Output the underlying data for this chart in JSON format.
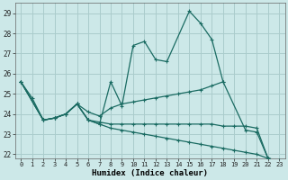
{
  "xlabel": "Humidex (Indice chaleur)",
  "bg_color": "#cce8e8",
  "grid_color": "#aacccc",
  "line_color": "#1a6b62",
  "ylim": [
    21.8,
    29.5
  ],
  "xlim": [
    -0.5,
    23.5
  ],
  "yticks": [
    22,
    23,
    24,
    25,
    26,
    27,
    28,
    29
  ],
  "xticks": [
    0,
    1,
    2,
    3,
    4,
    5,
    6,
    7,
    8,
    9,
    10,
    11,
    12,
    13,
    14,
    15,
    16,
    17,
    18,
    19,
    20,
    21,
    22,
    23
  ],
  "s1_x": [
    0,
    1,
    2,
    3,
    4,
    5,
    6,
    7,
    8,
    9,
    10,
    11,
    12,
    13,
    15,
    16,
    17,
    18,
    20,
    21,
    22,
    23
  ],
  "s1_y": [
    25.6,
    24.8,
    23.7,
    23.8,
    24.0,
    24.5,
    23.7,
    23.5,
    25.6,
    24.4,
    27.4,
    27.6,
    26.7,
    26.6,
    29.1,
    28.5,
    27.7,
    25.6,
    23.2,
    23.1,
    21.8,
    21.7
  ],
  "s2_x": [
    0,
    2,
    3,
    4,
    5,
    6,
    7,
    8,
    9,
    10,
    11,
    12,
    13,
    14,
    15,
    16,
    17,
    18
  ],
  "s2_y": [
    25.6,
    23.7,
    23.8,
    24.0,
    24.5,
    24.1,
    23.9,
    24.3,
    24.5,
    24.6,
    24.7,
    24.8,
    24.9,
    25.0,
    25.1,
    25.2,
    25.4,
    25.6
  ],
  "s3_x": [
    0,
    2,
    3,
    4,
    5,
    6,
    7,
    8,
    9,
    10,
    11,
    12,
    13,
    14,
    15,
    16,
    17,
    18,
    19,
    20,
    21,
    22,
    23
  ],
  "s3_y": [
    25.6,
    23.7,
    23.8,
    24.0,
    24.5,
    23.7,
    23.6,
    23.5,
    23.5,
    23.5,
    23.5,
    23.5,
    23.5,
    23.5,
    23.5,
    23.5,
    23.5,
    23.4,
    23.4,
    23.4,
    23.3,
    21.8,
    21.7
  ],
  "s4_x": [
    0,
    2,
    3,
    4,
    5,
    6,
    7,
    8,
    9,
    10,
    11,
    12,
    13,
    14,
    15,
    16,
    17,
    18,
    19,
    20,
    21,
    22,
    23
  ],
  "s4_y": [
    25.6,
    23.7,
    23.8,
    24.0,
    24.5,
    23.7,
    23.5,
    23.3,
    23.2,
    23.1,
    23.0,
    22.9,
    22.8,
    22.7,
    22.6,
    22.5,
    22.4,
    22.3,
    22.2,
    22.1,
    22.0,
    21.8,
    21.7
  ]
}
